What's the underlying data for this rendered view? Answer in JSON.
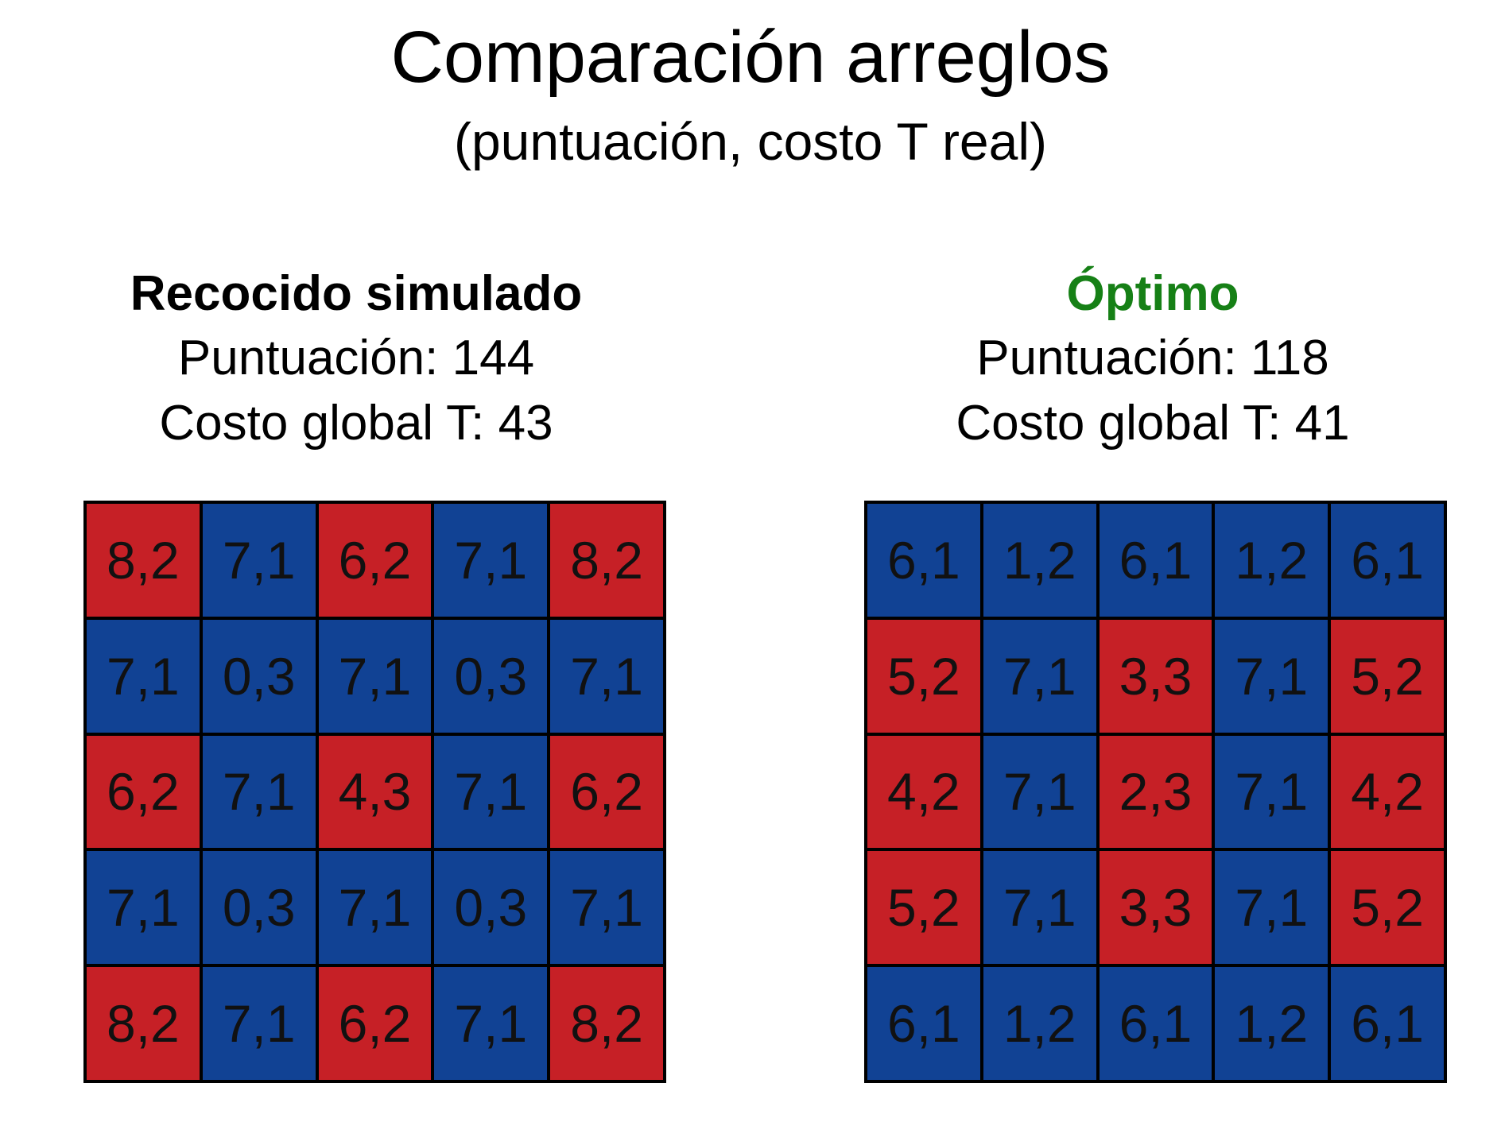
{
  "title": "Comparación arreglos",
  "subtitle": "(puntuación, costo T real)",
  "colors": {
    "red": "#c62026",
    "blue": "#114294",
    "optimal_title": "#168016"
  },
  "panels": [
    {
      "title": "Recocido simulado",
      "title_color": "#000000",
      "score_line": "Puntuación: 144",
      "cost_line": "Costo global T: 43",
      "grid": [
        [
          {
            "text": "8,2",
            "color": "red"
          },
          {
            "text": "7,1",
            "color": "blue"
          },
          {
            "text": "6,2",
            "color": "red"
          },
          {
            "text": "7,1",
            "color": "blue"
          },
          {
            "text": "8,2",
            "color": "red"
          }
        ],
        [
          {
            "text": "7,1",
            "color": "blue"
          },
          {
            "text": "0,3",
            "color": "blue"
          },
          {
            "text": "7,1",
            "color": "blue"
          },
          {
            "text": "0,3",
            "color": "blue"
          },
          {
            "text": "7,1",
            "color": "blue"
          }
        ],
        [
          {
            "text": "6,2",
            "color": "red"
          },
          {
            "text": "7,1",
            "color": "blue"
          },
          {
            "text": "4,3",
            "color": "red"
          },
          {
            "text": "7,1",
            "color": "blue"
          },
          {
            "text": "6,2",
            "color": "red"
          }
        ],
        [
          {
            "text": "7,1",
            "color": "blue"
          },
          {
            "text": "0,3",
            "color": "blue"
          },
          {
            "text": "7,1",
            "color": "blue"
          },
          {
            "text": "0,3",
            "color": "blue"
          },
          {
            "text": "7,1",
            "color": "blue"
          }
        ],
        [
          {
            "text": "8,2",
            "color": "red"
          },
          {
            "text": "7,1",
            "color": "blue"
          },
          {
            "text": "6,2",
            "color": "red"
          },
          {
            "text": "7,1",
            "color": "blue"
          },
          {
            "text": "8,2",
            "color": "red"
          }
        ]
      ]
    },
    {
      "title": "Óptimo",
      "title_color": "#168016",
      "score_line": "Puntuación: 118",
      "cost_line": "Costo global T: 41",
      "grid": [
        [
          {
            "text": "6,1",
            "color": "blue"
          },
          {
            "text": "1,2",
            "color": "blue"
          },
          {
            "text": "6,1",
            "color": "blue"
          },
          {
            "text": "1,2",
            "color": "blue"
          },
          {
            "text": "6,1",
            "color": "blue"
          }
        ],
        [
          {
            "text": "5,2",
            "color": "red"
          },
          {
            "text": "7,1",
            "color": "blue"
          },
          {
            "text": "3,3",
            "color": "red"
          },
          {
            "text": "7,1",
            "color": "blue"
          },
          {
            "text": "5,2",
            "color": "red"
          }
        ],
        [
          {
            "text": "4,2",
            "color": "red"
          },
          {
            "text": "7,1",
            "color": "blue"
          },
          {
            "text": "2,3",
            "color": "red"
          },
          {
            "text": "7,1",
            "color": "blue"
          },
          {
            "text": "4,2",
            "color": "red"
          }
        ],
        [
          {
            "text": "5,2",
            "color": "red"
          },
          {
            "text": "7,1",
            "color": "blue"
          },
          {
            "text": "3,3",
            "color": "red"
          },
          {
            "text": "7,1",
            "color": "blue"
          },
          {
            "text": "5,2",
            "color": "red"
          }
        ],
        [
          {
            "text": "6,1",
            "color": "blue"
          },
          {
            "text": "1,2",
            "color": "blue"
          },
          {
            "text": "6,1",
            "color": "blue"
          },
          {
            "text": "1,2",
            "color": "blue"
          },
          {
            "text": "6,1",
            "color": "blue"
          }
        ]
      ]
    }
  ]
}
